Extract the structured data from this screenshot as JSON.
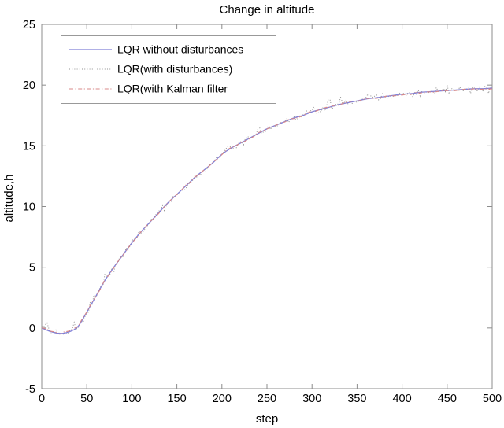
{
  "figure": {
    "title": "Change in altitude",
    "background": "#ffffff"
  },
  "axes": {
    "xlabel": "step",
    "ylabel": "altitude,h",
    "xlim": [
      0,
      500
    ],
    "ylim": [
      -5,
      25
    ],
    "x_ticks": [
      0,
      50,
      100,
      150,
      200,
      250,
      300,
      350,
      400,
      450,
      500
    ],
    "y_ticks": [
      -5,
      0,
      5,
      10,
      15,
      20,
      25
    ],
    "box": true,
    "grid": false,
    "axis_color": "#8c8c8c",
    "tick_label_color": "#000000"
  },
  "legend": {
    "position": "top-left",
    "border_color": "#999999",
    "background": "#ffffff",
    "items": [
      {
        "label": "LQR without disturbances",
        "color": "#8080d8",
        "line_style": "solid"
      },
      {
        "label": "LQR(with disturbances)",
        "color": "#909090",
        "line_style": "dotted"
      },
      {
        "label": "LQR(with Kalman filter",
        "color": "#d88888",
        "line_style": "dash-dot"
      }
    ]
  },
  "chart_data": {
    "type": "line",
    "title": "Change in altitude",
    "xlabel": "step",
    "ylabel": "altitude,h",
    "xlim": [
      0,
      500
    ],
    "ylim": [
      -5,
      25
    ],
    "grid": false,
    "legend_position": "top-left",
    "x": [
      0,
      10,
      20,
      30,
      40,
      50,
      60,
      70,
      80,
      90,
      100,
      110,
      120,
      130,
      140,
      150,
      160,
      170,
      180,
      190,
      200,
      210,
      220,
      230,
      240,
      250,
      260,
      270,
      280,
      290,
      300,
      310,
      320,
      330,
      340,
      350,
      360,
      370,
      380,
      390,
      400,
      410,
      420,
      430,
      440,
      450,
      460,
      470,
      480,
      490,
      500
    ],
    "series": [
      {
        "name": "LQR without disturbances",
        "style": "solid",
        "color": "#8080d8",
        "y": [
          0.0,
          -0.3,
          -0.45,
          -0.33,
          0.1,
          1.3,
          2.6,
          3.9,
          5.0,
          6.0,
          7.0,
          7.9,
          8.7,
          9.5,
          10.3,
          11.0,
          11.7,
          12.4,
          13.0,
          13.6,
          14.3,
          14.8,
          15.2,
          15.6,
          16.0,
          16.4,
          16.7,
          17.0,
          17.3,
          17.5,
          17.8,
          18.0,
          18.2,
          18.4,
          18.55,
          18.7,
          18.85,
          18.95,
          19.05,
          19.15,
          19.25,
          19.3,
          19.4,
          19.45,
          19.5,
          19.55,
          19.6,
          19.65,
          19.7,
          19.7,
          19.75
        ]
      },
      {
        "name": "LQR(with disturbances)",
        "style": "dotted",
        "color": "#909090",
        "relation": "base curve plus measurement noise",
        "noise_amplitude": 0.3,
        "noise_spike_amplitude": 0.55
      },
      {
        "name": "LQR(with Kalman filter",
        "style": "dash-dot",
        "color": "#d88888",
        "relation": "base curve plus small residual noise",
        "noise_amplitude": 0.07
      }
    ]
  }
}
